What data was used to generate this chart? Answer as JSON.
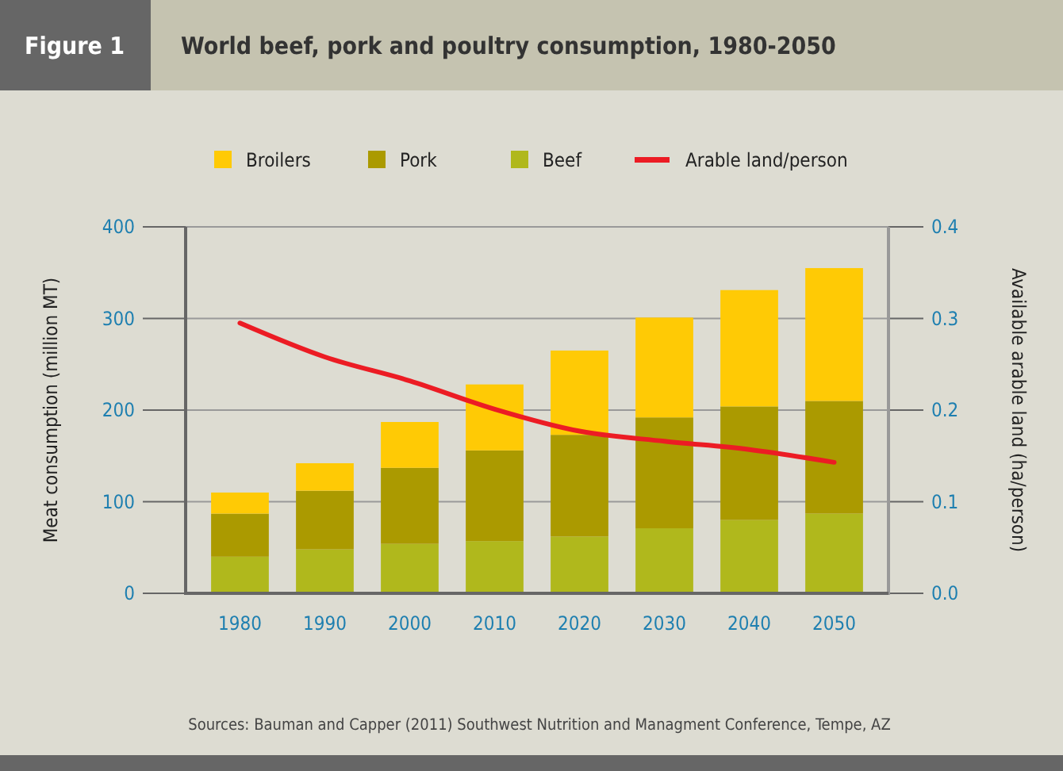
{
  "chart_data": {
    "type": "bar",
    "title": "World beef, pork and poultry consumption, 1980-2050",
    "annotations": [
      "Figure 1",
      "Sources: Bauman and Capper (2011) Southwest Nutrition and Managment Conference, Tempe, AZ"
    ],
    "ylabel": "Meat consumption (million MT)",
    "y2label": "Available arable land (ha/person)",
    "categories": [
      "1980",
      "1990",
      "2000",
      "2010",
      "2020",
      "2030",
      "2040",
      "2050"
    ],
    "stacked": true,
    "legend": "top",
    "grid": "y",
    "ylim": [
      0,
      400
    ],
    "yticks": [
      0,
      100,
      200,
      300,
      400
    ],
    "y2lim": [
      0,
      0.4
    ],
    "y2ticks": [
      {
        "value": 0,
        "label": "0.0"
      },
      0.1,
      0.2,
      0.3,
      0.4
    ],
    "series": [
      {
        "name": "Beef",
        "color": "#b0b81c",
        "values": [
          40,
          48,
          54,
          57,
          62,
          71,
          80,
          87
        ]
      },
      {
        "name": "Pork",
        "color": "#ab9a00",
        "values": [
          47,
          64,
          83,
          99,
          111,
          121,
          124,
          123
        ]
      },
      {
        "name": "Broilers",
        "color": "#ffca05",
        "values": [
          23,
          30,
          50,
          72,
          92,
          109,
          127,
          145
        ]
      },
      {
        "name": "Arable land/person",
        "type": "line",
        "axis": "y2",
        "color": "#ec1c24",
        "values": [
          0.295,
          0.258,
          0.232,
          0.201,
          0.177,
          0.166,
          0.157,
          0.143
        ]
      }
    ]
  }
}
